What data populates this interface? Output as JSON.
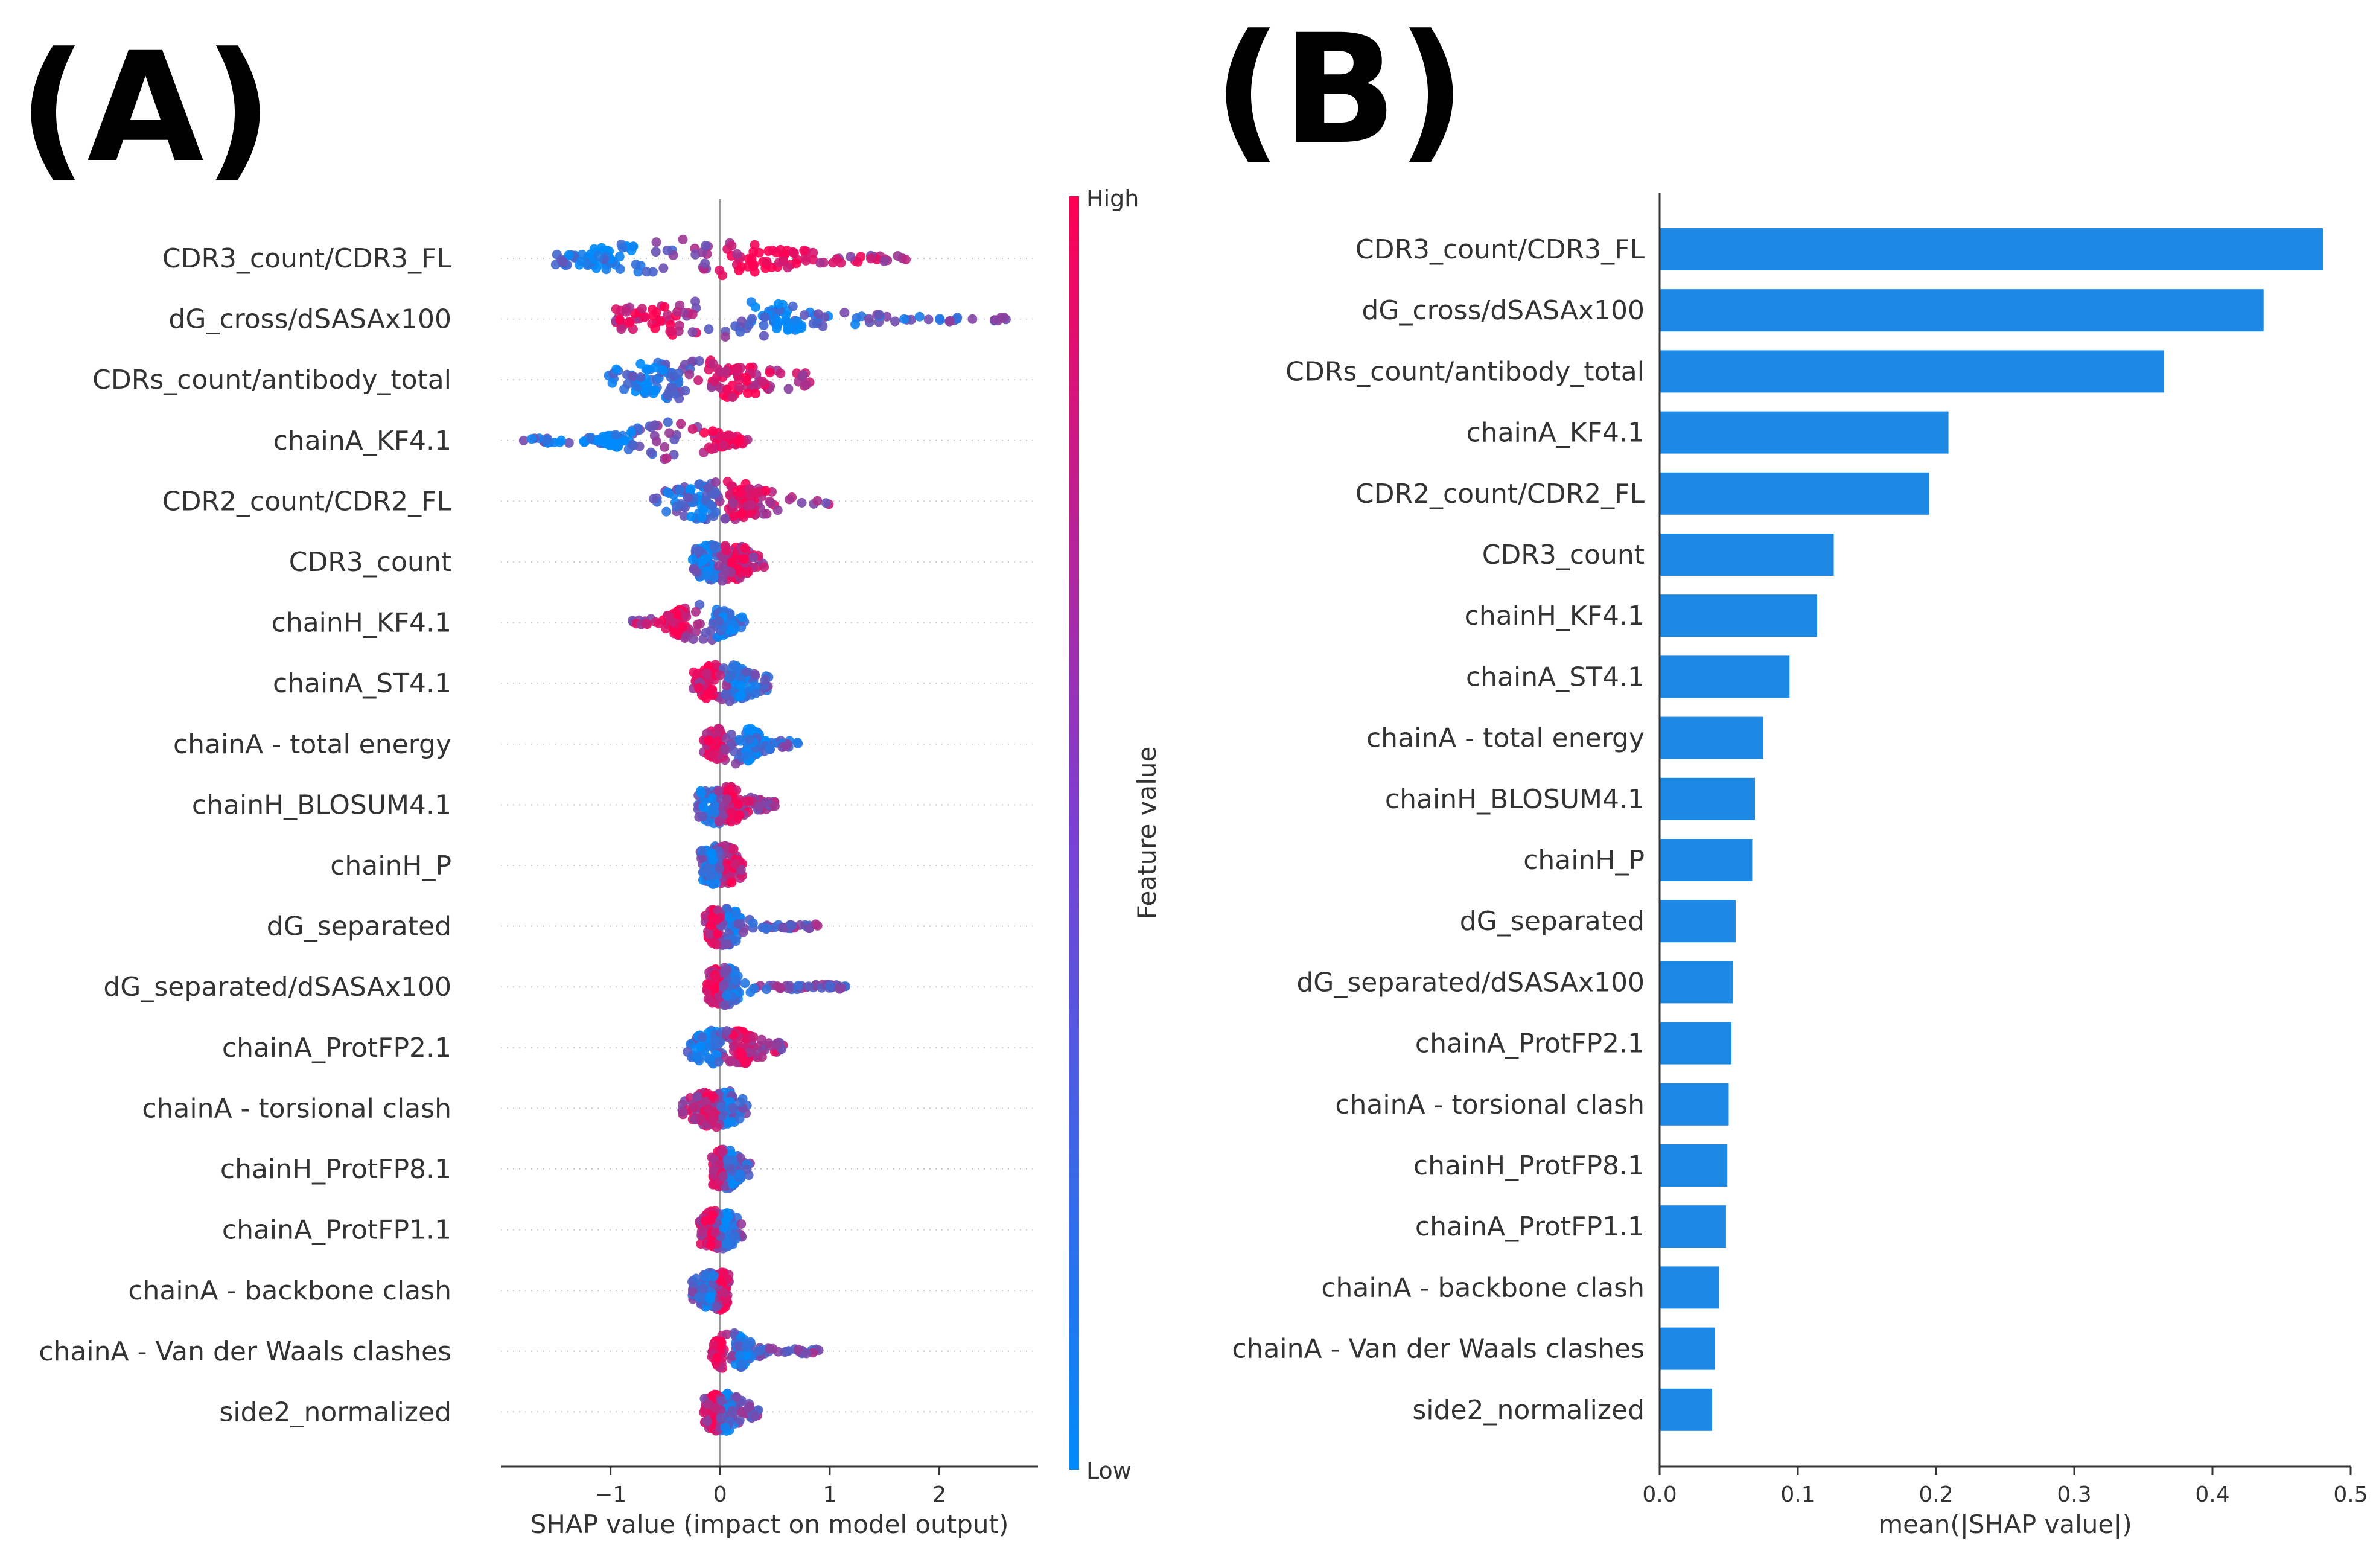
{
  "panel_labels": [
    "(A)",
    "(B)"
  ],
  "colors": {
    "high": "#ff0052",
    "low": "#008bfb",
    "bar": "#1e88e5"
  },
  "chart_data": [
    {
      "type": "scatter",
      "title": "",
      "xlabel": "SHAP value (impact on model output)",
      "ylabel": "",
      "xlim": [
        -2.0,
        2.9
      ],
      "xticks": [
        -1,
        0,
        1,
        2
      ],
      "xtick_labels": [
        "−1",
        "0",
        "1",
        "2"
      ],
      "grid": false,
      "colorbar": {
        "label": "Feature value",
        "high": "High",
        "low": "Low"
      },
      "features": [
        {
          "name": "CDR3_count/CDR3_FL",
          "min": -1.5,
          "max": 1.7,
          "lowCenter": -1.0,
          "highCenter": 0.35,
          "spread": 0.32,
          "highCut": 0.35
        },
        {
          "name": "dG_cross/dSASAx100",
          "min": -0.95,
          "max": 2.65,
          "lowCenter": 0.55,
          "highCenter": -0.6,
          "spread": 0.32,
          "highCut": -0.15
        },
        {
          "name": "CDRs_count/antibody_total",
          "min": -1.15,
          "max": 0.95,
          "lowCenter": -0.6,
          "highCenter": 0.1,
          "spread": 0.3,
          "highCut": 0.15
        },
        {
          "name": "chainA_KF4.1",
          "min": -1.8,
          "max": 0.25,
          "lowCenter": -1.0,
          "highCenter": 0.08,
          "spread": 0.12,
          "highCut": 0.0
        },
        {
          "name": "CDR2_count/CDR2_FL",
          "min": -0.65,
          "max": 1.0,
          "lowCenter": -0.2,
          "highCenter": 0.2,
          "spread": 0.18,
          "highCut": 0.15
        },
        {
          "name": "CDR3_count",
          "min": -0.25,
          "max": 0.5,
          "lowCenter": -0.12,
          "highCenter": 0.15,
          "spread": 0.1,
          "highCut": 0.05
        },
        {
          "name": "chainH_KF4.1",
          "min": -0.8,
          "max": 0.25,
          "lowCenter": 0.05,
          "highCenter": -0.4,
          "spread": 0.08,
          "highCut": -0.05
        },
        {
          "name": "chainA_ST4.1",
          "min": -0.25,
          "max": 0.45,
          "lowCenter": 0.15,
          "highCenter": -0.1,
          "spread": 0.1,
          "highCut": 0.0
        },
        {
          "name": "chainA - total energy",
          "min": -0.15,
          "max": 0.75,
          "lowCenter": 0.3,
          "highCenter": -0.05,
          "spread": 0.08,
          "highCut": 0.0
        },
        {
          "name": "chainH_BLOSUM4.1",
          "min": -0.2,
          "max": 0.5,
          "lowCenter": -0.1,
          "highCenter": 0.1,
          "spread": 0.08,
          "highCut": 0.0
        },
        {
          "name": "chainH_P",
          "min": -0.18,
          "max": 0.22,
          "lowCenter": -0.08,
          "highCenter": 0.08,
          "spread": 0.08,
          "highCut": 0.0
        },
        {
          "name": "dG_separated",
          "min": -0.15,
          "max": 0.9,
          "lowCenter": 0.1,
          "highCenter": -0.05,
          "spread": 0.06,
          "highCut": 0.0
        },
        {
          "name": "dG_separated/dSASAx100",
          "min": -0.12,
          "max": 1.15,
          "lowCenter": 0.1,
          "highCenter": -0.05,
          "spread": 0.06,
          "highCut": 0.0
        },
        {
          "name": "chainA_ProtFP2.1",
          "min": -0.3,
          "max": 0.6,
          "lowCenter": -0.1,
          "highCenter": 0.2,
          "spread": 0.1,
          "highCut": 0.0
        },
        {
          "name": "chainA - torsional clash",
          "min": -0.35,
          "max": 0.25,
          "lowCenter": 0.05,
          "highCenter": -0.1,
          "spread": 0.08,
          "highCut": 0.0
        },
        {
          "name": "chainH_ProtFP8.1",
          "min": -0.08,
          "max": 0.28,
          "lowCenter": 0.1,
          "highCenter": -0.02,
          "spread": 0.05,
          "highCut": 0.0
        },
        {
          "name": "chainA_ProtFP1.1",
          "min": -0.2,
          "max": 0.2,
          "lowCenter": 0.05,
          "highCenter": -0.08,
          "spread": 0.07,
          "highCut": 0.0
        },
        {
          "name": "chainA - backbone clash",
          "min": -0.3,
          "max": 0.08,
          "lowCenter": -0.1,
          "highCenter": 0.02,
          "spread": 0.06,
          "highCut": 0.0
        },
        {
          "name": "chainA - Van der Waals clashes",
          "min": -0.1,
          "max": 0.9,
          "lowCenter": 0.2,
          "highCenter": -0.02,
          "spread": 0.05,
          "highCut": 0.0
        },
        {
          "name": "side2_normalized",
          "min": -0.15,
          "max": 0.35,
          "lowCenter": 0.05,
          "highCenter": -0.05,
          "spread": 0.07,
          "highCut": 0.0
        }
      ]
    },
    {
      "type": "bar",
      "orientation": "horizontal",
      "title": "",
      "xlabel": "mean(|SHAP value|)",
      "ylabel": "",
      "xlim": [
        0,
        0.5
      ],
      "xticks": [
        0.0,
        0.1,
        0.2,
        0.3,
        0.4,
        0.5
      ],
      "xtick_labels": [
        "0.0",
        "0.1",
        "0.2",
        "0.3",
        "0.4",
        "0.5"
      ],
      "grid": false,
      "categories": [
        "CDR3_count/CDR3_FL",
        "dG_cross/dSASAx100",
        "CDRs_count/antibody_total",
        "chainA_KF4.1",
        "CDR2_count/CDR2_FL",
        "CDR3_count",
        "chainH_KF4.1",
        "chainA_ST4.1",
        "chainA - total energy",
        "chainH_BLOSUM4.1",
        "chainH_P",
        "dG_separated",
        "dG_separated/dSASAx100",
        "chainA_ProtFP2.1",
        "chainA - torsional clash",
        "chainH_ProtFP8.1",
        "chainA_ProtFP1.1",
        "chainA - backbone clash",
        "chainA - Van der Waals clashes",
        "side2_normalized"
      ],
      "values": [
        0.48,
        0.437,
        0.365,
        0.209,
        0.195,
        0.126,
        0.114,
        0.094,
        0.075,
        0.069,
        0.067,
        0.055,
        0.053,
        0.052,
        0.05,
        0.049,
        0.048,
        0.043,
        0.04,
        0.038
      ]
    }
  ]
}
